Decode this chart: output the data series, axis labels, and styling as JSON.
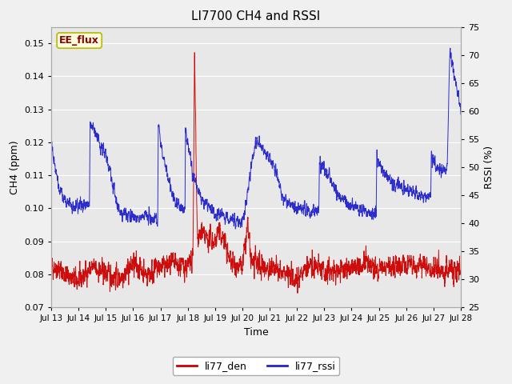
{
  "title": "LI7700 CH4 and RSSI",
  "xlabel": "Time",
  "ylabel_left": "CH4 (ppm)",
  "ylabel_right": "RSSI (%)",
  "ylim_left": [
    0.07,
    0.155
  ],
  "ylim_right": [
    25,
    75
  ],
  "yticks_left": [
    0.07,
    0.08,
    0.09,
    0.1,
    0.11,
    0.12,
    0.13,
    0.14,
    0.15
  ],
  "yticks_right": [
    25,
    30,
    35,
    40,
    45,
    50,
    55,
    60,
    65,
    70,
    75
  ],
  "xtick_labels": [
    "Jul 13",
    "Jul 14",
    "Jul 15",
    "Jul 16",
    "Jul 17",
    "Jul 18",
    "Jul 19",
    "Jul 20",
    "Jul 21",
    "Jul 22",
    "Jul 23",
    "Jul 24",
    "Jul 25",
    "Jul 26",
    "Jul 27",
    "Jul 28"
  ],
  "color_red": "#cc0000",
  "color_blue": "#2222cc",
  "legend_labels": [
    "li77_den",
    "li77_rssi"
  ],
  "text_label": "EE_flux",
  "text_label_color": "#8b0000",
  "fig_facecolor": "#f0f0f0",
  "plot_bg_color": "#e8e8e8",
  "grid_color": "#ffffff",
  "rssi_ctrl_x": [
    0,
    0.05,
    0.3,
    0.5,
    1.0,
    1.4,
    1.42,
    2.0,
    2.5,
    3.0,
    3.5,
    3.9,
    3.92,
    4.1,
    4.5,
    4.9,
    4.92,
    5.1,
    5.15,
    5.2,
    5.4,
    5.5,
    5.8,
    6.0,
    6.5,
    7.0,
    7.5,
    7.9,
    7.92,
    8.2,
    8.5,
    9.0,
    9.5,
    9.8,
    9.82,
    10.2,
    10.5,
    11.0,
    11.5,
    11.9,
    11.92,
    12.2,
    12.5,
    13.0,
    13.5,
    13.9,
    13.92,
    14.1,
    14.5,
    14.6,
    14.8,
    15.0
  ],
  "rssi_ctrl_y": [
    55,
    53,
    46,
    44,
    43,
    43,
    58,
    52,
    42,
    41,
    41,
    41,
    58,
    52,
    44,
    42,
    57,
    52,
    50,
    48,
    46,
    44,
    43,
    42,
    41,
    40,
    55,
    52,
    52,
    50,
    44,
    43,
    42,
    42,
    51,
    48,
    45,
    43,
    42,
    42,
    52,
    49,
    47,
    46,
    45,
    45,
    52,
    50,
    50,
    71,
    65,
    60
  ],
  "ch4_ctrl_x": [
    0,
    0.5,
    1.0,
    1.5,
    2.0,
    2.5,
    3.0,
    3.5,
    4.0,
    4.5,
    5.0,
    5.15,
    5.2,
    5.25,
    5.3,
    5.35,
    5.4,
    5.5,
    5.6,
    6.0,
    6.1,
    6.3,
    6.5,
    6.7,
    7.0,
    7.2,
    7.3,
    7.5,
    8.0,
    8.5,
    9.0,
    9.5,
    10.0,
    10.5,
    11.0,
    11.5,
    12.0,
    12.5,
    13.0,
    13.5,
    14.0,
    14.5,
    15.0
  ],
  "ch4_ctrl_y": [
    0.083,
    0.08,
    0.078,
    0.082,
    0.08,
    0.079,
    0.083,
    0.08,
    0.082,
    0.083,
    0.082,
    0.083,
    0.09,
    0.147,
    0.12,
    0.092,
    0.09,
    0.093,
    0.091,
    0.09,
    0.093,
    0.091,
    0.085,
    0.083,
    0.082,
    0.095,
    0.084,
    0.083,
    0.082,
    0.08,
    0.079,
    0.083,
    0.081,
    0.081,
    0.082,
    0.083,
    0.082,
    0.082,
    0.083,
    0.082,
    0.082,
    0.081,
    0.081
  ],
  "noise_seed": 42,
  "ch4_noise_amp": 0.003,
  "rssi_noise_amp": 1.2
}
